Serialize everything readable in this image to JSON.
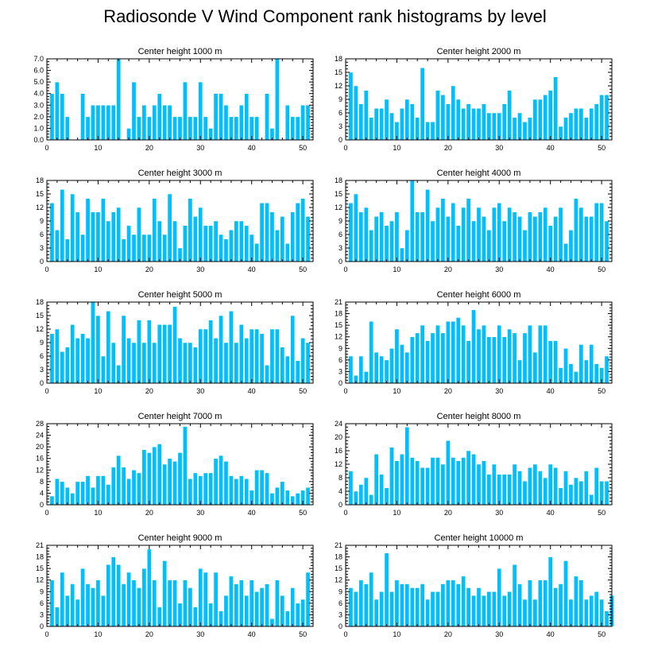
{
  "figure": {
    "title": "Radiosonde V Wind Component rank histograms by level",
    "bar_color": "#00BFFF"
  },
  "chart_data": [
    {
      "type": "bar",
      "title": "Center height 1000 m",
      "xlim": [
        0,
        52
      ],
      "ylim": [
        0,
        7
      ],
      "xticks": [
        0,
        10,
        20,
        30,
        40,
        50
      ],
      "yticks": [
        "0.0",
        "1.0",
        "2.0",
        "3.0",
        "4.0",
        "5.0",
        "6.0",
        "7.0"
      ],
      "values": [
        0,
        4,
        5,
        4,
        2,
        0,
        0,
        4,
        2,
        3,
        3,
        3,
        3,
        3,
        7,
        0,
        1,
        5,
        2,
        3,
        2,
        3,
        4,
        3,
        3,
        2,
        2,
        5,
        2,
        2,
        5,
        2,
        1,
        4,
        4,
        3,
        2,
        2,
        3,
        4,
        2,
        2,
        0,
        4,
        1,
        7,
        0,
        3,
        2,
        2,
        3,
        3
      ]
    },
    {
      "type": "bar",
      "title": "Center height 2000 m",
      "xlim": [
        0,
        52
      ],
      "ylim": [
        0,
        18
      ],
      "xticks": [
        0,
        10,
        20,
        30,
        40,
        50
      ],
      "yticks": [
        "0",
        "3",
        "6",
        "9",
        "12",
        "15",
        "18"
      ],
      "values": [
        0,
        15,
        12,
        8,
        11,
        5,
        7,
        7,
        9,
        6,
        4,
        7,
        9,
        8,
        5,
        16,
        4,
        4,
        11,
        10,
        8,
        12,
        9,
        7,
        8,
        7,
        7,
        8,
        6,
        6,
        6,
        8,
        11,
        5,
        6,
        4,
        5,
        9,
        9,
        10,
        11,
        14,
        3,
        5,
        6,
        7,
        7,
        5,
        7,
        8,
        10,
        10
      ]
    },
    {
      "type": "bar",
      "title": "Center height 3000 m",
      "xlim": [
        0,
        52
      ],
      "ylim": [
        0,
        18
      ],
      "xticks": [
        0,
        10,
        20,
        30,
        40,
        50
      ],
      "yticks": [
        "0",
        "3",
        "6",
        "9",
        "12",
        "15",
        "18"
      ],
      "values": [
        0,
        13,
        7,
        16,
        5,
        15,
        11,
        6,
        14,
        11,
        11,
        14,
        9,
        11,
        12,
        5,
        8,
        6,
        12,
        6,
        6,
        14,
        9,
        6,
        15,
        9,
        3,
        8,
        14,
        10,
        12,
        8,
        8,
        9,
        6,
        5,
        7,
        9,
        9,
        8,
        6,
        4,
        13,
        13,
        11,
        7,
        10,
        4,
        11,
        13,
        14,
        10
      ]
    },
    {
      "type": "bar",
      "title": "Center height 4000 m",
      "xlim": [
        0,
        52
      ],
      "ylim": [
        0,
        18
      ],
      "xticks": [
        0,
        10,
        20,
        30,
        40,
        50
      ],
      "yticks": [
        "0",
        "3",
        "6",
        "9",
        "12",
        "15",
        "18"
      ],
      "values": [
        0,
        13,
        15,
        11,
        12,
        7,
        10,
        11,
        8,
        9,
        11,
        3,
        7,
        18,
        11,
        11,
        16,
        9,
        12,
        14,
        10,
        13,
        8,
        12,
        14,
        9,
        12,
        10,
        7,
        12,
        13,
        9,
        12,
        11,
        10,
        7,
        11,
        10,
        11,
        12,
        8,
        10,
        12,
        4,
        7,
        14,
        12,
        10,
        10,
        13,
        13,
        9
      ]
    },
    {
      "type": "bar",
      "title": "Center height 5000 m",
      "xlim": [
        0,
        52
      ],
      "ylim": [
        0,
        18
      ],
      "xticks": [
        0,
        10,
        20,
        30,
        40,
        50
      ],
      "yticks": [
        "0",
        "3",
        "6",
        "9",
        "12",
        "15",
        "18"
      ],
      "values": [
        0,
        11,
        12,
        7,
        8,
        13,
        10,
        11,
        10,
        18,
        15,
        6,
        16,
        9,
        4,
        15,
        10,
        9,
        14,
        9,
        14,
        9,
        13,
        13,
        13,
        17,
        10,
        9,
        9,
        8,
        12,
        12,
        14,
        10,
        15,
        9,
        16,
        9,
        13,
        10,
        12,
        12,
        11,
        4,
        12,
        12,
        8,
        6,
        15,
        5,
        10,
        9
      ]
    },
    {
      "type": "bar",
      "title": "Center height 6000 m",
      "xlim": [
        0,
        52
      ],
      "ylim": [
        0,
        21
      ],
      "xticks": [
        0,
        10,
        20,
        30,
        40,
        50
      ],
      "yticks": [
        "0",
        "3",
        "6",
        "9",
        "12",
        "15",
        "18",
        "21"
      ],
      "values": [
        0,
        7,
        2,
        7,
        3,
        16,
        8,
        7,
        6,
        9,
        14,
        10,
        8,
        12,
        13,
        15,
        11,
        13,
        15,
        13,
        16,
        16,
        17,
        15,
        11,
        19,
        14,
        15,
        12,
        12,
        15,
        12,
        14,
        13,
        6,
        13,
        15,
        8,
        15,
        15,
        11,
        11,
        4,
        9,
        5,
        3,
        10,
        6,
        10,
        5,
        4,
        7
      ]
    },
    {
      "type": "bar",
      "title": "Center height 7000 m",
      "xlim": [
        0,
        52
      ],
      "ylim": [
        0,
        28
      ],
      "xticks": [
        0,
        10,
        20,
        30,
        40,
        50
      ],
      "yticks": [
        "0",
        "4",
        "8",
        "12",
        "16",
        "20",
        "24",
        "28"
      ],
      "values": [
        0,
        3,
        9,
        8,
        6,
        4,
        8,
        8,
        10,
        6,
        10,
        10,
        7,
        13,
        17,
        13,
        9,
        12,
        11,
        19,
        18,
        20,
        21,
        14,
        16,
        15,
        18,
        27,
        9,
        11,
        10,
        11,
        11,
        16,
        17,
        15,
        10,
        9,
        10,
        9,
        5,
        12,
        12,
        11,
        4,
        6,
        8,
        5,
        3,
        4,
        5,
        6
      ]
    },
    {
      "type": "bar",
      "title": "Center height 8000 m",
      "xlim": [
        0,
        52
      ],
      "ylim": [
        0,
        24
      ],
      "xticks": [
        0,
        10,
        20,
        30,
        40,
        50
      ],
      "yticks": [
        "0",
        "4",
        "8",
        "12",
        "16",
        "20",
        "24"
      ],
      "values": [
        0,
        10,
        4,
        6,
        8,
        3,
        15,
        9,
        5,
        17,
        13,
        15,
        23,
        14,
        13,
        11,
        11,
        14,
        14,
        12,
        19,
        14,
        13,
        14,
        16,
        15,
        12,
        13,
        9,
        12,
        9,
        9,
        9,
        12,
        10,
        7,
        11,
        12,
        10,
        8,
        12,
        11,
        5,
        10,
        6,
        8,
        7,
        10,
        3,
        11,
        7,
        7
      ]
    },
    {
      "type": "bar",
      "title": "Center height 9000 m",
      "xlim": [
        0,
        52
      ],
      "ylim": [
        0,
        21
      ],
      "xticks": [
        0,
        10,
        20,
        30,
        40,
        50
      ],
      "yticks": [
        "0",
        "3",
        "6",
        "9",
        "12",
        "15",
        "18",
        "21"
      ],
      "values": [
        0,
        12,
        5,
        14,
        8,
        11,
        7,
        15,
        11,
        10,
        12,
        8,
        16,
        18,
        16,
        11,
        14,
        12,
        10,
        15,
        20,
        12,
        5,
        17,
        12,
        12,
        6,
        12,
        10,
        5,
        15,
        14,
        6,
        14,
        4,
        8,
        13,
        11,
        12,
        8,
        12,
        9,
        10,
        11,
        2,
        12,
        8,
        4,
        10,
        6,
        7,
        14
      ]
    },
    {
      "type": "bar",
      "title": "Center height 10000 m",
      "xlim": [
        0,
        52
      ],
      "ylim": [
        0,
        21
      ],
      "xticks": [
        0,
        10,
        20,
        30,
        40,
        50
      ],
      "yticks": [
        "0",
        "3",
        "6",
        "9",
        "12",
        "15",
        "18",
        "21"
      ],
      "values": [
        0,
        10,
        9,
        12,
        11,
        14,
        7,
        9,
        19,
        9,
        12,
        11,
        11,
        10,
        10,
        11,
        7,
        9,
        9,
        11,
        12,
        12,
        11,
        13,
        10,
        8,
        10,
        8,
        9,
        9,
        15,
        8,
        9,
        16,
        11,
        7,
        12,
        7,
        12,
        12,
        18,
        10,
        11,
        17,
        7,
        13,
        12,
        7,
        8,
        9,
        7,
        4,
        8
      ]
    }
  ]
}
